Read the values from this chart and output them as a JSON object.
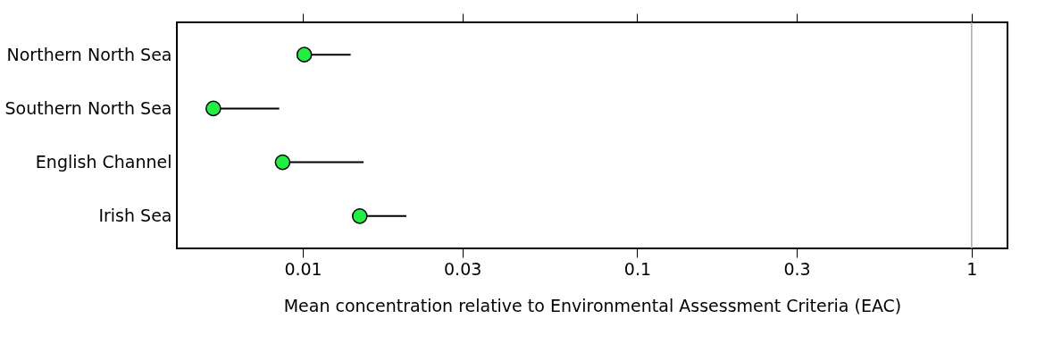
{
  "chart_data": {
    "type": "scatter",
    "xlabel": "Mean concentration relative to Environmental Assessment Criteria (EAC)",
    "categories": [
      "Northern North Sea",
      "Southern North Sea",
      "English Channel",
      "Irish Sea"
    ],
    "orientation": "horizontal",
    "series": [
      {
        "color": "#22ee44",
        "values": [
          0.0101,
          0.0054,
          0.0087,
          0.0148
        ],
        "errors": [
          [
            0.0101,
            0.0139
          ],
          [
            0.0054,
            0.0085
          ],
          [
            0.0087,
            0.0152
          ],
          [
            0.0148,
            0.0204
          ]
        ]
      }
    ],
    "log": "x",
    "xlim": [
      0.0042,
      1.28
    ],
    "xticks": [
      0.01,
      0.03,
      0.1,
      0.3,
      1
    ],
    "ref_lines": [
      {
        "axis": "x",
        "value": 1,
        "color": "#aaaaaa"
      }
    ],
    "marker": "circle",
    "grid": false
  }
}
